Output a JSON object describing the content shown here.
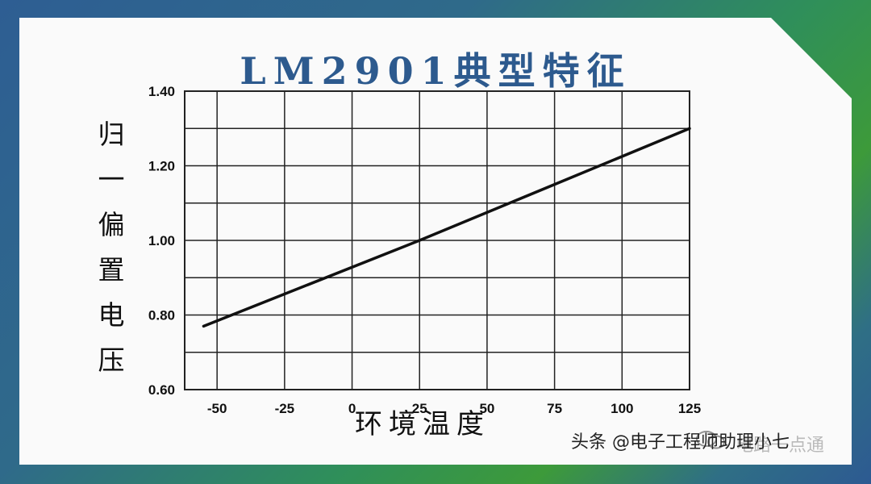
{
  "chart_data": {
    "type": "line",
    "title": "LM2901典型特征",
    "xlabel": "环境温度",
    "ylabel": "归一偏置电压",
    "xlim": [
      -62,
      125
    ],
    "ylim": [
      0.6,
      1.4
    ],
    "x_ticks": [
      "-50",
      "-25",
      "0",
      "25",
      "50",
      "75",
      "100",
      "125"
    ],
    "y_ticks": [
      "0.60",
      "0.80",
      "1.00",
      "1.20",
      "1.40"
    ],
    "grid": true,
    "series": [
      {
        "x": [
          -55,
          25,
          125
        ],
        "values": [
          0.77,
          1.0,
          1.3
        ]
      }
    ]
  },
  "watermark": {
    "main": "头条 @电子工程师助理小七",
    "overlay": "电路一点通"
  },
  "colors": {
    "title": "#2d5a8e",
    "line": "#111111",
    "grid": "#222222"
  }
}
